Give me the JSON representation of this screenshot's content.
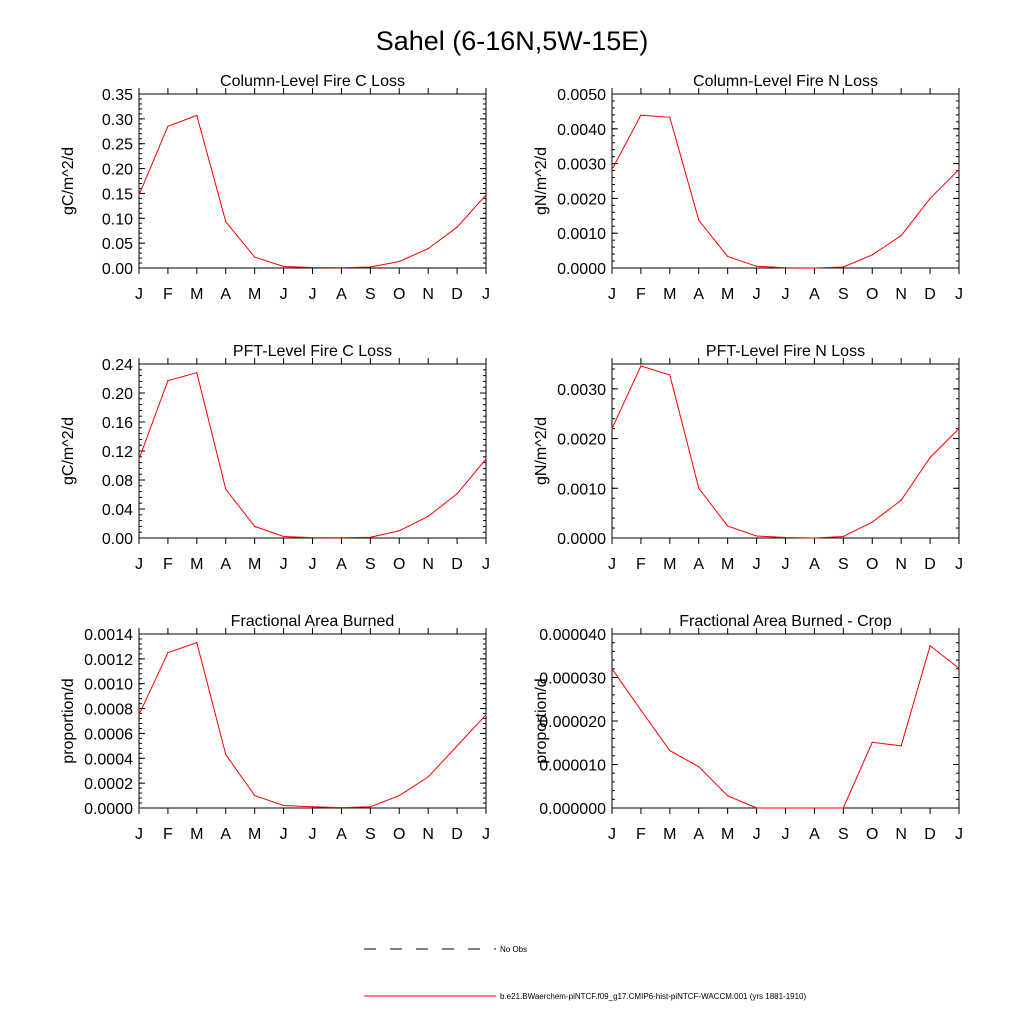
{
  "figure": {
    "title": "Sahel (6-16N,5W-15E)",
    "series_color": "#ff0000"
  },
  "legend": {
    "entries": [
      {
        "label": "No Obs",
        "style": "dashed",
        "color": "#000000"
      },
      {
        "label": "b.e21.BWaerchem-piNTCF.f09_g17.CMIP6-hist-piNTCF-WACCM.001 (yrs 1881-1910)",
        "style": "solid",
        "color": "#ff0000"
      }
    ]
  },
  "chart_data": [
    {
      "type": "line",
      "title": "Column-Level Fire C Loss",
      "ylabel": "gC/m^2/d",
      "categories": [
        "J",
        "F",
        "M",
        "A",
        "M",
        "J",
        "J",
        "A",
        "S",
        "O",
        "N",
        "D",
        "J"
      ],
      "ylim": [
        0,
        0.35
      ],
      "yticks": [
        "0.00",
        "0.05",
        "0.10",
        "0.15",
        "0.20",
        "0.25",
        "0.30",
        "0.35"
      ],
      "series": [
        {
          "values": [
            0.147,
            0.285,
            0.307,
            0.093,
            0.022,
            0.003,
            0.001,
            0.0005,
            0.002,
            0.013,
            0.039,
            0.082,
            0.147
          ]
        }
      ]
    },
    {
      "type": "line",
      "title": "Column-Level Fire N Loss",
      "ylabel": "gN/m^2/d",
      "categories": [
        "J",
        "F",
        "M",
        "A",
        "M",
        "J",
        "J",
        "A",
        "S",
        "O",
        "N",
        "D",
        "J"
      ],
      "ylim": [
        0,
        0.005
      ],
      "yticks": [
        "0.0000",
        "0.0010",
        "0.0020",
        "0.0030",
        "0.0040",
        "0.0050"
      ],
      "series": [
        {
          "values": [
            0.00283,
            0.00439,
            0.00433,
            0.00137,
            0.00033,
            5e-05,
            1e-05,
            0.0,
            3e-05,
            0.00038,
            0.00093,
            0.002,
            0.00283
          ]
        }
      ]
    },
    {
      "type": "line",
      "title": "PFT-Level Fire C Loss",
      "ylabel": "gC/m^2/d",
      "categories": [
        "J",
        "F",
        "M",
        "A",
        "M",
        "J",
        "J",
        "A",
        "S",
        "O",
        "N",
        "D",
        "J"
      ],
      "ylim": [
        0,
        0.24
      ],
      "yticks": [
        "0.00",
        "0.04",
        "0.08",
        "0.12",
        "0.16",
        "0.20",
        "0.24"
      ],
      "series": [
        {
          "values": [
            0.109,
            0.217,
            0.228,
            0.067,
            0.016,
            0.002,
            0.0005,
            0.0003,
            0.001,
            0.01,
            0.03,
            0.061,
            0.109
          ]
        }
      ]
    },
    {
      "type": "line",
      "title": "PFT-Level Fire N Loss",
      "ylabel": "gN/m^2/d",
      "categories": [
        "J",
        "F",
        "M",
        "A",
        "M",
        "J",
        "J",
        "A",
        "S",
        "O",
        "N",
        "D",
        "J"
      ],
      "ylim": [
        0,
        0.0035
      ],
      "yticks": [
        "0.0000",
        "0.0010",
        "0.0020",
        "0.0030"
      ],
      "series": [
        {
          "values": [
            0.0022,
            0.00346,
            0.00328,
            0.001,
            0.00024,
            4e-05,
            1e-05,
            0.0,
            3e-05,
            0.00032,
            0.00076,
            0.00162,
            0.0022
          ]
        }
      ]
    },
    {
      "type": "line",
      "title": "Fractional Area Burned",
      "ylabel": "proportion/d",
      "categories": [
        "J",
        "F",
        "M",
        "A",
        "M",
        "J",
        "J",
        "A",
        "S",
        "O",
        "N",
        "D",
        "J"
      ],
      "ylim": [
        0,
        0.0014
      ],
      "yticks": [
        "0.0000",
        "0.0002",
        "0.0004",
        "0.0006",
        "0.0008",
        "0.0010",
        "0.0012",
        "0.0014"
      ],
      "series": [
        {
          "values": [
            0.00075,
            0.00125,
            0.00133,
            0.00043,
            0.0001,
            2e-05,
            1e-05,
            3e-06,
            1e-05,
            0.0001,
            0.00025,
            0.0005,
            0.00075
          ]
        }
      ]
    },
    {
      "type": "line",
      "title": "Fractional Area Burned - Crop",
      "ylabel": "proportion/d",
      "categories": [
        "J",
        "F",
        "M",
        "A",
        "M",
        "J",
        "J",
        "A",
        "S",
        "O",
        "N",
        "D",
        "J"
      ],
      "ylim": [
        0,
        4e-05
      ],
      "yticks": [
        "0.000000",
        "0.000010",
        "0.000020",
        "0.000030",
        "0.000040"
      ],
      "series": [
        {
          "values": [
            3.2e-05,
            2.25e-05,
            1.32e-05,
            9.5e-06,
            2.8e-06,
            0.0,
            0.0,
            0.0,
            0.0,
            1.51e-05,
            1.43e-05,
            3.73e-05,
            3.21e-05
          ]
        }
      ]
    }
  ]
}
